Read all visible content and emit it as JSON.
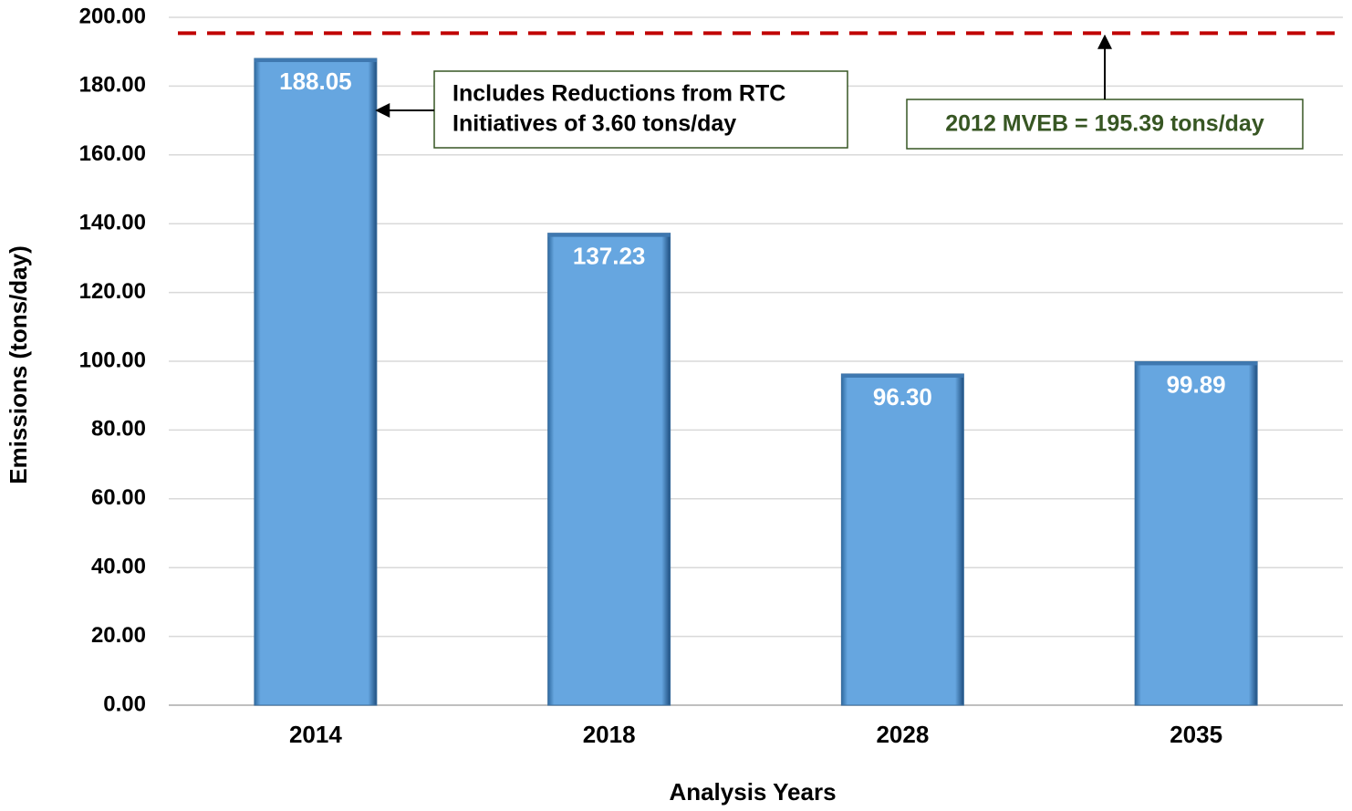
{
  "chart_data": {
    "type": "bar",
    "categories": [
      "2014",
      "2018",
      "2028",
      "2035"
    ],
    "values": [
      188.05,
      137.23,
      96.3,
      99.89
    ],
    "value_labels": [
      "188.05",
      "137.23",
      "96.30",
      "99.89"
    ],
    "color": "#66a6e0",
    "ylim": [
      0,
      200
    ],
    "yticks": [
      {
        "value": 0,
        "label": "0.00"
      },
      {
        "value": 20,
        "label": "20.00"
      },
      {
        "value": 40,
        "label": "40.00"
      },
      {
        "value": 60,
        "label": "60.00"
      },
      {
        "value": 80,
        "label": "80.00"
      },
      {
        "value": 100,
        "label": "100.00"
      },
      {
        "value": 120,
        "label": "120.00"
      },
      {
        "value": 140,
        "label": "140.00"
      },
      {
        "value": 160,
        "label": "160.00"
      },
      {
        "value": 180,
        "label": "180.00"
      },
      {
        "value": 200,
        "label": "200.00"
      }
    ],
    "grid": true,
    "xlabel": "Analysis Years",
    "ylabel": "Emissions (tons/day)",
    "reference_line": {
      "value": 195.39,
      "color": "#c00000"
    },
    "annotations": [
      {
        "lines": [
          "Includes Reductions from RTC",
          "Initiatives of 3.60 tons/day"
        ],
        "color": "#000000"
      },
      {
        "lines": [
          "2012 MVEB = 195.39 tons/day"
        ],
        "color": "#375623"
      }
    ]
  }
}
